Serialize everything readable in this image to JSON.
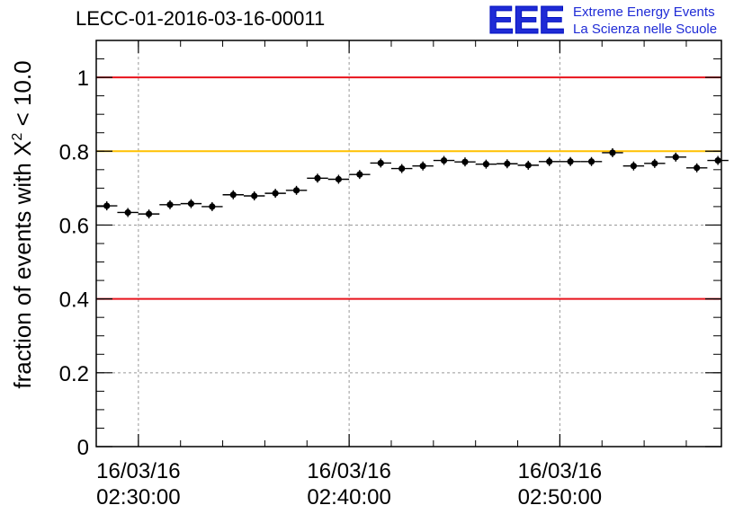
{
  "title": "LECC-01-2016-03-16-00011",
  "logo": {
    "mark": "EEE",
    "line1": "Extreme Energy Events",
    "line2": "La Scienza nelle Scuole"
  },
  "colors": {
    "threshold_red": "#e8131b",
    "threshold_yellow": "#ffc000",
    "markers": "#000000",
    "logo_blue": "#1f2bd6"
  },
  "chart_data": {
    "type": "scatter",
    "title": "LECC-01-2016-03-16-00011",
    "xlabel": "",
    "ylabel_main": "fraction of events with X",
    "ylabel_sup": "2",
    "ylabel_tail": " < 10.0",
    "x_unit": "minutes",
    "x_range": [
      "02:28:00",
      "02:57:40"
    ],
    "ylim": [
      0,
      1.1
    ],
    "y_ticks": [
      "0",
      "0.2",
      "0.4",
      "0.6",
      "0.8",
      "1"
    ],
    "x_tick_labels": [
      {
        "date": "16/03/16",
        "time": "02:30:00"
      },
      {
        "date": "16/03/16",
        "time": "02:40:00"
      },
      {
        "date": "16/03/16",
        "time": "02:50:00"
      }
    ],
    "grid": true,
    "bin_width_minutes": 1,
    "thresholds": [
      {
        "y": 1.0,
        "color": "red"
      },
      {
        "y": 0.8,
        "color": "yellow"
      },
      {
        "y": 0.4,
        "color": "red"
      }
    ],
    "points": [
      {
        "t": "02:28:00",
        "y": 0.652
      },
      {
        "t": "02:29:00",
        "y": 0.634
      },
      {
        "t": "02:30:00",
        "y": 0.63
      },
      {
        "t": "02:31:00",
        "y": 0.655
      },
      {
        "t": "02:32:00",
        "y": 0.658
      },
      {
        "t": "02:33:00",
        "y": 0.65
      },
      {
        "t": "02:34:00",
        "y": 0.682
      },
      {
        "t": "02:35:00",
        "y": 0.679
      },
      {
        "t": "02:36:00",
        "y": 0.686
      },
      {
        "t": "02:37:00",
        "y": 0.694
      },
      {
        "t": "02:38:00",
        "y": 0.727
      },
      {
        "t": "02:39:00",
        "y": 0.724
      },
      {
        "t": "02:40:00",
        "y": 0.737
      },
      {
        "t": "02:41:00",
        "y": 0.768
      },
      {
        "t": "02:42:00",
        "y": 0.753
      },
      {
        "t": "02:43:00",
        "y": 0.76
      },
      {
        "t": "02:44:00",
        "y": 0.775
      },
      {
        "t": "02:45:00",
        "y": 0.771
      },
      {
        "t": "02:46:00",
        "y": 0.765
      },
      {
        "t": "02:47:00",
        "y": 0.766
      },
      {
        "t": "02:48:00",
        "y": 0.762
      },
      {
        "t": "02:49:00",
        "y": 0.772
      },
      {
        "t": "02:50:00",
        "y": 0.772
      },
      {
        "t": "02:51:00",
        "y": 0.772
      },
      {
        "t": "02:52:00",
        "y": 0.796
      },
      {
        "t": "02:53:00",
        "y": 0.76
      },
      {
        "t": "02:54:00",
        "y": 0.767
      },
      {
        "t": "02:55:00",
        "y": 0.784
      },
      {
        "t": "02:56:00",
        "y": 0.755
      },
      {
        "t": "02:57:00",
        "y": 0.775
      }
    ]
  }
}
